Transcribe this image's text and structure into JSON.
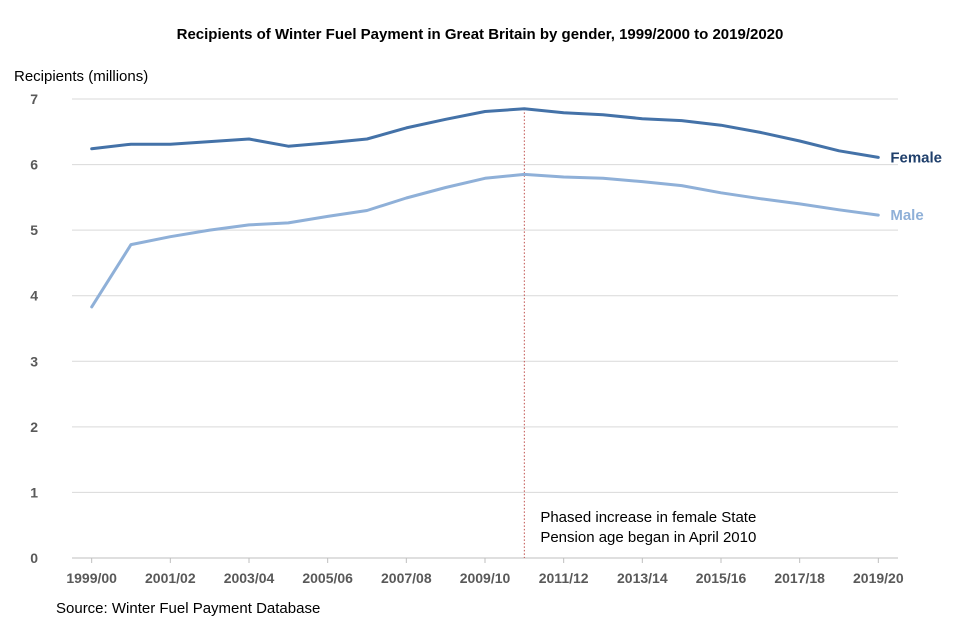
{
  "chart_data": {
    "type": "line",
    "title": "Recipients of Winter Fuel Payment in Great Britain by gender, 1999/2000 to 2019/2020",
    "ylabel": "Recipients (millions)",
    "xlabel": "",
    "ylim": [
      0,
      7
    ],
    "yticks": [
      "0",
      "1",
      "2",
      "3",
      "4",
      "5",
      "6",
      "7"
    ],
    "categories": [
      "1999/00",
      "2000/01",
      "2001/02",
      "2002/03",
      "2003/04",
      "2004/05",
      "2005/06",
      "2006/07",
      "2007/08",
      "2008/09",
      "2009/10",
      "2010/11",
      "2011/12",
      "2012/13",
      "2013/14",
      "2014/15",
      "2015/16",
      "2016/17",
      "2017/18",
      "2018/19",
      "2019/20"
    ],
    "xtick_labels": [
      "1999/00",
      "2001/02",
      "2003/04",
      "2005/06",
      "2007/08",
      "2009/10",
      "2011/12",
      "2013/14",
      "2015/16",
      "2017/18",
      "2019/20"
    ],
    "series": [
      {
        "name": "Female",
        "color": "#4472a8",
        "label_color": "#1f3f6b",
        "values": [
          6.24,
          6.31,
          6.31,
          6.35,
          6.39,
          6.28,
          6.33,
          6.39,
          6.56,
          6.69,
          6.81,
          6.85,
          6.79,
          6.76,
          6.7,
          6.67,
          6.6,
          6.49,
          6.36,
          6.21,
          6.11
        ]
      },
      {
        "name": "Male",
        "color": "#8fb0d8",
        "label_color": "#8fb0d8",
        "values": [
          3.83,
          4.78,
          4.9,
          5.0,
          5.08,
          5.11,
          5.21,
          5.3,
          5.49,
          5.65,
          5.79,
          5.85,
          5.81,
          5.79,
          5.74,
          5.68,
          5.57,
          5.48,
          5.4,
          5.31,
          5.23
        ]
      }
    ],
    "annotation": {
      "x_category": "2010/11",
      "lines": [
        "Phased increase in female State",
        "Pension age began in April 2010"
      ],
      "line_color": "#c0504d"
    },
    "grid": true,
    "legend": "inline labels at line ends"
  },
  "source": "Source: Winter Fuel Payment Database"
}
